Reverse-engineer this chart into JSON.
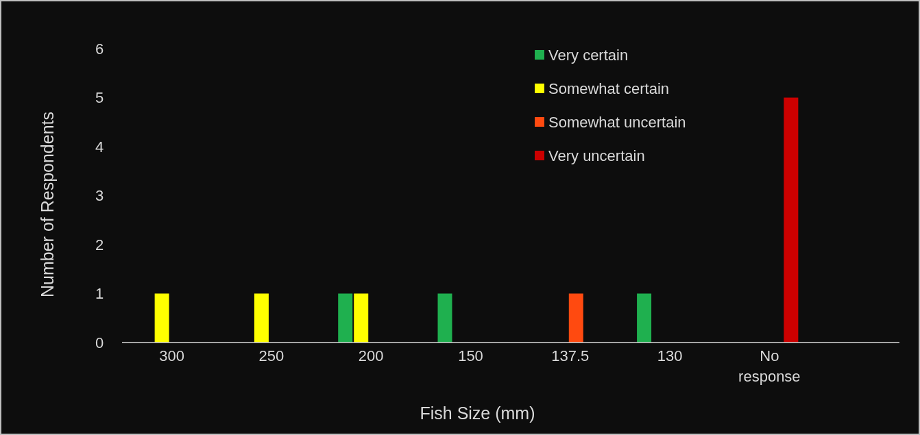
{
  "chart_data": {
    "type": "bar",
    "xlabel": "Fish Size (mm)",
    "ylabel": "Number of Respondents",
    "categories": [
      "300",
      "250",
      "200",
      "150",
      "137.5",
      "130",
      "No response"
    ],
    "series": [
      {
        "name": "Very certain",
        "color": "#1fb04f",
        "values": [
          0,
          0,
          1,
          1,
          0,
          1,
          0
        ]
      },
      {
        "name": "Somewhat certain",
        "color": "#ffff00",
        "values": [
          1,
          1,
          1,
          0,
          0,
          0,
          0
        ]
      },
      {
        "name": "Somewhat uncertain",
        "color": "#ff4a10",
        "values": [
          0,
          0,
          0,
          0,
          1,
          0,
          0
        ]
      },
      {
        "name": "Very uncertain",
        "color": "#cc0000",
        "values": [
          0,
          0,
          0,
          0,
          0,
          0,
          5
        ]
      }
    ],
    "ylim": [
      0,
      6
    ],
    "yticks": [
      0,
      1,
      2,
      3,
      4,
      5,
      6
    ],
    "grid": false,
    "legend": "top right"
  }
}
